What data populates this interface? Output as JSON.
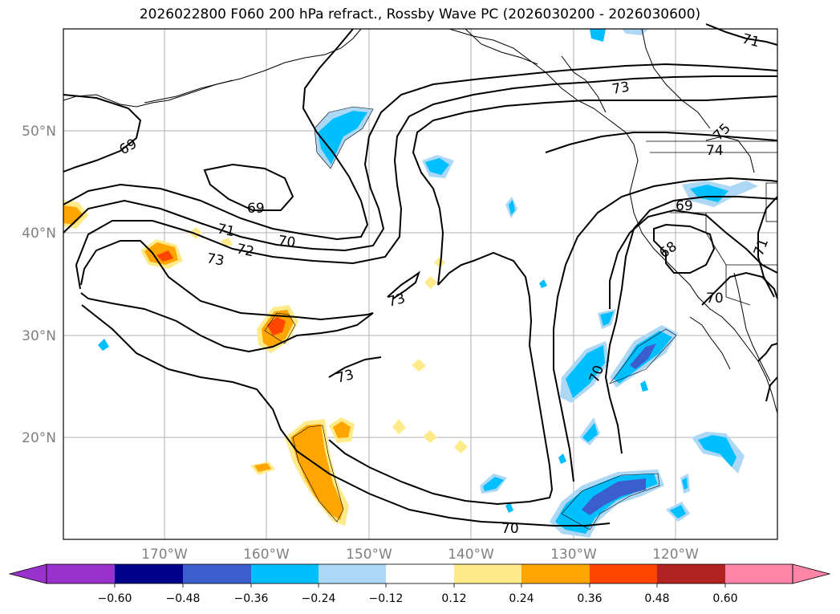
{
  "title": "2026022800 F060 200 hPa refract., Rossby Wave PC (2026030200 - 2026030600)",
  "map": {
    "lat_labels": [
      "50°N",
      "40°N",
      "30°N",
      "20°N"
    ],
    "lon_labels": [
      "170°W",
      "160°W",
      "150°W",
      "140°W",
      "130°W",
      "120°W"
    ],
    "contour_labels": [
      "69",
      "69",
      "71",
      "70",
      "72",
      "73",
      "73",
      "73",
      "73",
      "71",
      "74",
      "75",
      "69",
      "68",
      "71",
      "70",
      "70",
      "70"
    ]
  },
  "colorbar": {
    "ticks": [
      "−0.60",
      "−0.48",
      "−0.36",
      "−0.24",
      "−0.12",
      "0.12",
      "0.24",
      "0.36",
      "0.48",
      "0.60"
    ],
    "colors": [
      "#9932cc",
      "#00008b",
      "#3a5fcd",
      "#00bfff",
      "#add8f5",
      "#ffffff",
      "#ffea8a",
      "#ffa500",
      "#ff4500",
      "#b22222",
      "#ff85a8"
    ]
  }
}
